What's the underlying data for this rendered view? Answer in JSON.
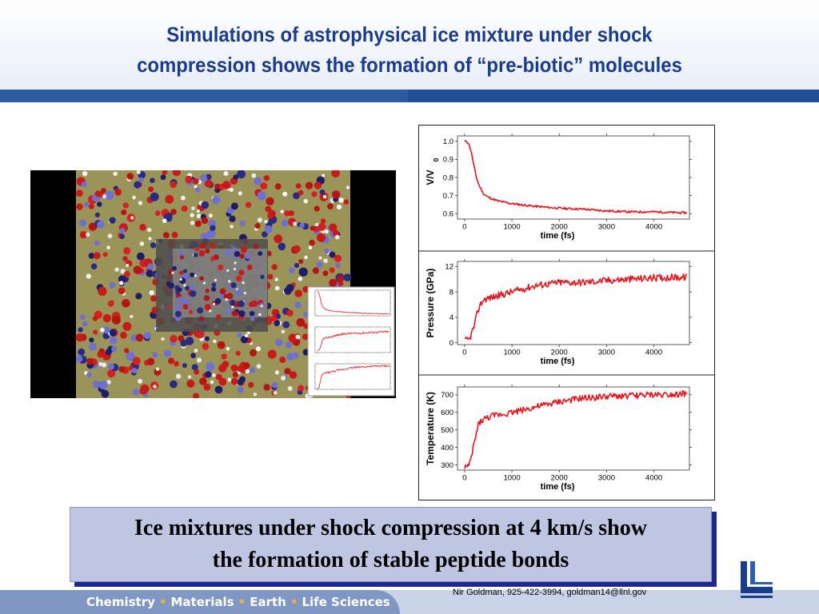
{
  "slide": {
    "title_line1": "Simulations of astrophysical ice mixture under shock",
    "title_line2": "compression shows the formation of “pre-biotic” molecules",
    "caption_line1": "Ice mixtures under shock compression at 4 km/s show",
    "caption_line2": "the formation of stable peptide bonds",
    "contact": "Nir Goldman, 925-422-3994, goldman14@llnl.gov",
    "footer_items": [
      "Chemistry",
      "Materials",
      "Earth",
      "Life Sciences"
    ],
    "footer_separator": "•",
    "colors": {
      "title": "#1a3c8c",
      "bar": "#1f4f96",
      "caption_bg": "#bfc6e2",
      "caption_shadow": "#1c2a8c",
      "footer_tab": "#8097c4",
      "footer_dot": "#f2b233",
      "series": "#e8141c"
    }
  },
  "image": {
    "description_icon": "molecular-dynamics-snapshot"
  },
  "chart_data": [
    {
      "type": "line",
      "xlabel": "time (fs)",
      "ylabel": "V/V",
      "ylabel_sub": "0",
      "xlim": [
        -150,
        4750
      ],
      "ylim": [
        0.57,
        1.03
      ],
      "xticks": [
        0,
        1000,
        2000,
        3000,
        4000
      ],
      "yticks": [
        0.6,
        0.7,
        0.8,
        0.9,
        1.0
      ],
      "ytick_labels": [
        "0.6",
        "0.7",
        "0.8",
        "0.9",
        "1.0"
      ],
      "noise": 0.006,
      "x": [
        0,
        50,
        100,
        150,
        200,
        250,
        300,
        400,
        500,
        700,
        1000,
        1500,
        2000,
        2500,
        3000,
        3500,
        4000,
        4500,
        4700
      ],
      "y": [
        1.0,
        1.0,
        0.98,
        0.93,
        0.86,
        0.8,
        0.76,
        0.71,
        0.69,
        0.67,
        0.655,
        0.64,
        0.63,
        0.625,
        0.615,
        0.61,
        0.61,
        0.605,
        0.605
      ]
    },
    {
      "type": "line",
      "xlabel": "time (fs)",
      "ylabel": "Pressure (GPa)",
      "xlim": [
        -150,
        4750
      ],
      "ylim": [
        -0.3,
        12.8
      ],
      "xticks": [
        0,
        1000,
        2000,
        3000,
        4000
      ],
      "yticks": [
        0,
        4,
        8,
        12
      ],
      "ytick_labels": [
        "0",
        "4",
        "8",
        "12"
      ],
      "noise": 0.55,
      "x": [
        0,
        100,
        200,
        300,
        400,
        600,
        1000,
        1500,
        2000,
        2500,
        3000,
        3500,
        4000,
        4500,
        4700
      ],
      "y": [
        0.3,
        0.5,
        2.5,
        5.5,
        6.8,
        7.2,
        8.0,
        9.0,
        9.5,
        9.5,
        9.8,
        10.0,
        10.2,
        10.3,
        10.3
      ]
    },
    {
      "type": "line",
      "xlabel": "time (fs)",
      "ylabel": "Temperature (K)",
      "xlim": [
        -150,
        4750
      ],
      "ylim": [
        270,
        745
      ],
      "xticks": [
        0,
        1000,
        2000,
        3000,
        4000
      ],
      "yticks": [
        300,
        400,
        500,
        600,
        700
      ],
      "ytick_labels": [
        "300",
        "400",
        "500",
        "600",
        "700"
      ],
      "noise": 18,
      "x": [
        0,
        100,
        200,
        300,
        400,
        600,
        1000,
        1500,
        2000,
        2500,
        3000,
        3500,
        4000,
        4500,
        4700
      ],
      "y": [
        290,
        290,
        420,
        540,
        560,
        580,
        600,
        630,
        660,
        680,
        690,
        695,
        700,
        705,
        705
      ]
    }
  ]
}
